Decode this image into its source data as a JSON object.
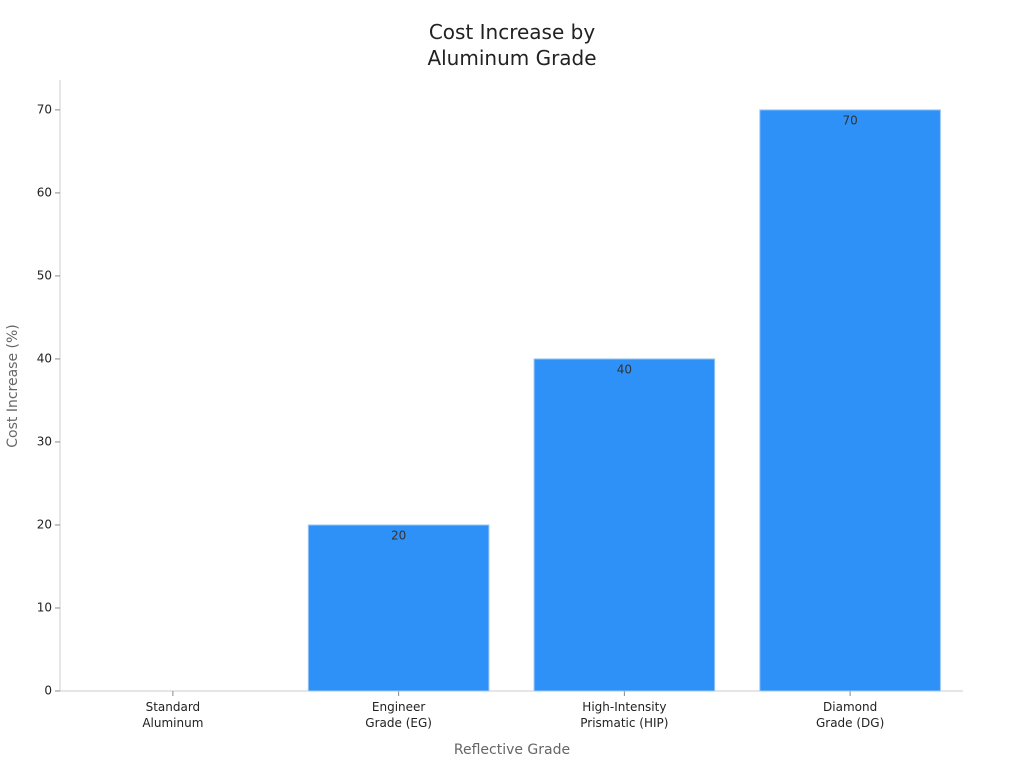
{
  "chart_data": {
    "type": "bar",
    "title": "Cost Increase by\nAluminum Grade",
    "x_label": "Reflective Grade",
    "y_label": "Cost Increase (%)",
    "categories": [
      "Standard\nAluminum",
      "Engineer\nGrade (EG)",
      "High-Intensity\nPrismatic (HIP)",
      "Diamond\nGrade (DG)"
    ],
    "values": [
      0,
      20,
      40,
      70
    ],
    "color": "#2e91f8",
    "ylim": [
      0,
      73.6
    ],
    "yticks": [
      0,
      10,
      20,
      30,
      40,
      50,
      60,
      70
    ],
    "grid": false
  }
}
